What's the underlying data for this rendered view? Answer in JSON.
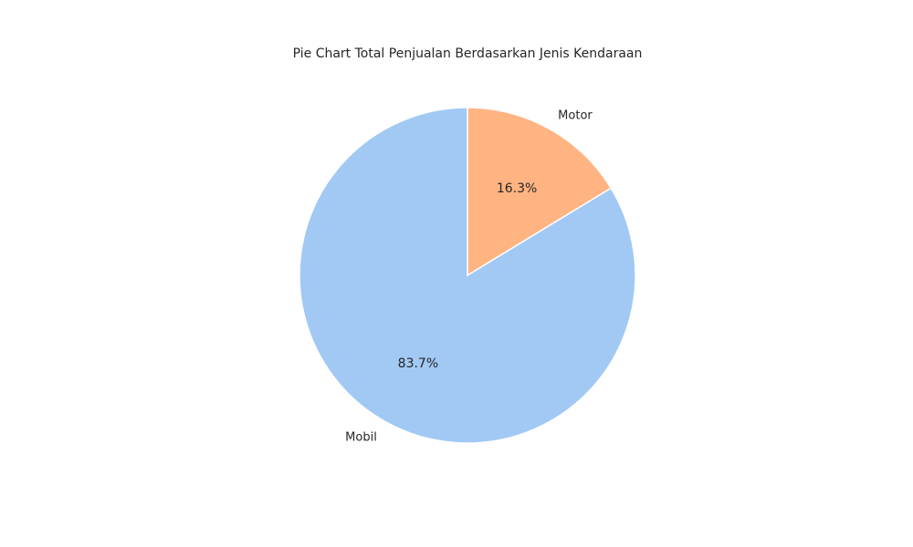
{
  "chart_data": {
    "type": "pie",
    "title": "Pie Chart Total Penjualan Berdasarkan Jenis Kendaraan",
    "categories": [
      "Motor",
      "Mobil"
    ],
    "values": [
      16.3,
      83.7
    ],
    "percent_labels": [
      "16.3%",
      "83.7%"
    ],
    "colors": [
      "#ffb482",
      "#a1c9f4"
    ],
    "start_angle_deg": 90,
    "direction": "clockwise",
    "edge_color": "#ffffff"
  }
}
